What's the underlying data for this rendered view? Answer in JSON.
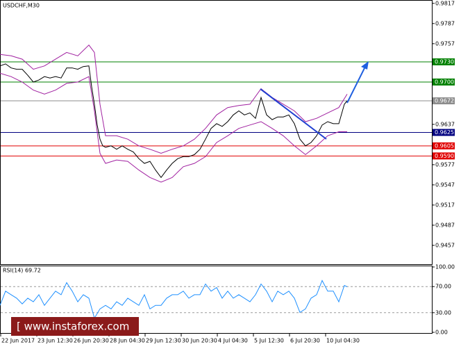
{
  "chart_data": [
    {
      "type": "line",
      "title": "USDCHF,M30",
      "xlim": [
        0,
        155.5
      ],
      "xticks": [
        {
          "value": 0,
          "label": "22 Jun 2017"
        },
        {
          "value": 13,
          "label": "23 Jun 12:30"
        },
        {
          "value": 26,
          "label": "26 Jun 20:30"
        },
        {
          "value": 39,
          "label": "28 Jun 04:30"
        },
        {
          "value": 52,
          "label": "29 Jun 12:30"
        },
        {
          "value": 65,
          "label": "30 Jun 20:30"
        },
        {
          "value": 78,
          "label": "4 Jul 04:30"
        },
        {
          "value": 91,
          "label": "5 Jul 12:30"
        },
        {
          "value": 104,
          "label": "6 Jul 20:30"
        },
        {
          "value": 117,
          "label": "10 Jul 04:30"
        }
      ],
      "ylim": [
        0.9429,
        0.9822
      ],
      "yticks": [
        0.9817,
        0.9787,
        0.9757,
        0.9637,
        0.9577,
        0.9547,
        0.9517,
        0.9487,
        0.9457
      ],
      "levels": [
        {
          "value": 0.973,
          "label": "0.9730",
          "color": "#008000"
        },
        {
          "value": 0.97,
          "label": "0.9700",
          "color": "#008000"
        },
        {
          "value": 0.9672,
          "label": "0.9672",
          "color": "#8c8c8c"
        },
        {
          "value": 0.9625,
          "label": "0.9625",
          "color": "#000080"
        },
        {
          "value": 0.9605,
          "label": "0.9605",
          "color": "#e00000"
        },
        {
          "value": 0.959,
          "label": "0.9590",
          "color": "#e00000"
        }
      ],
      "series": [
        {
          "color": "#000000",
          "x": [
            0,
            2,
            4,
            6,
            8,
            10,
            12,
            14,
            16,
            18,
            20,
            22,
            24,
            26,
            28,
            30,
            32,
            33,
            34,
            35,
            36,
            37,
            38,
            40,
            42,
            44,
            46,
            48,
            50,
            52,
            54,
            56,
            58,
            60,
            62,
            64,
            66,
            68,
            70,
            72,
            74,
            76,
            78,
            80,
            82,
            84,
            86,
            88,
            90,
            92,
            94,
            96,
            98,
            100,
            102,
            104,
            106,
            108,
            110,
            112,
            114,
            116,
            118,
            120,
            122,
            124,
            125
          ],
          "values": [
            0.9724,
            0.9727,
            0.9721,
            0.9719,
            0.9719,
            0.971,
            0.97,
            0.9703,
            0.9708,
            0.9706,
            0.9708,
            0.9706,
            0.9721,
            0.9721,
            0.9719,
            0.9723,
            0.9724,
            0.9693,
            0.9667,
            0.9636,
            0.9615,
            0.9605,
            0.9603,
            0.9605,
            0.96,
            0.9605,
            0.96,
            0.9596,
            0.9586,
            0.9579,
            0.9582,
            0.9569,
            0.9558,
            0.9569,
            0.9579,
            0.9586,
            0.9589,
            0.9589,
            0.9592,
            0.96,
            0.9615,
            0.9631,
            0.9638,
            0.9634,
            0.9641,
            0.9651,
            0.9657,
            0.9651,
            0.9654,
            0.9646,
            0.9677,
            0.9651,
            0.9644,
            0.9648,
            0.9648,
            0.9651,
            0.9638,
            0.9615,
            0.9605,
            0.961,
            0.962,
            0.9636,
            0.9641,
            0.9638,
            0.9638,
            0.9667,
            0.9672
          ]
        },
        {
          "color": "#a020a0",
          "x": [
            0,
            4,
            8,
            12,
            16,
            20,
            24,
            28,
            32,
            34,
            36,
            38,
            42,
            46,
            50,
            54,
            58,
            62,
            66,
            70,
            74,
            78,
            82,
            86,
            90,
            94,
            98,
            102,
            106,
            110,
            114,
            118,
            122,
            125
          ],
          "values": [
            0.9741,
            0.9739,
            0.9734,
            0.9719,
            0.9724,
            0.9734,
            0.9744,
            0.9739,
            0.9755,
            0.9744,
            0.9667,
            0.962,
            0.962,
            0.9615,
            0.9605,
            0.96,
            0.9594,
            0.96,
            0.9605,
            0.9615,
            0.9631,
            0.9651,
            0.9662,
            0.9665,
            0.9667,
            0.969,
            0.9677,
            0.9667,
            0.9657,
            0.9641,
            0.9646,
            0.9654,
            0.9662,
            0.9682
          ]
        },
        {
          "color": "#a020a0",
          "x": [
            0,
            4,
            8,
            12,
            16,
            20,
            24,
            28,
            32,
            34,
            36,
            38,
            42,
            46,
            50,
            54,
            58,
            62,
            66,
            70,
            74,
            78,
            82,
            86,
            90,
            94,
            98,
            102,
            106,
            110,
            114,
            118,
            122,
            125
          ],
          "values": [
            0.9713,
            0.9708,
            0.97,
            0.9688,
            0.9682,
            0.9688,
            0.9698,
            0.97,
            0.9708,
            0.9657,
            0.9594,
            0.9579,
            0.9584,
            0.9582,
            0.9569,
            0.9558,
            0.9551,
            0.9558,
            0.9574,
            0.9579,
            0.9589,
            0.961,
            0.962,
            0.9631,
            0.9636,
            0.9641,
            0.9631,
            0.962,
            0.9605,
            0.9592,
            0.9605,
            0.962,
            0.9626,
            0.9626
          ]
        }
      ]
    },
    {
      "type": "line",
      "title": "RSI(14) 69.72",
      "xlim": [
        0,
        155.5
      ],
      "ylim": [
        0,
        100
      ],
      "yticks": [
        {
          "value": 100,
          "label": "100.00"
        },
        {
          "value": 70,
          "label": "70.00"
        },
        {
          "value": 30,
          "label": "30.00"
        },
        {
          "value": 0,
          "label": "0.00"
        }
      ],
      "levels": [
        70,
        30
      ],
      "series": [
        {
          "color": "#1e90ff",
          "x": [
            0,
            2,
            4,
            6,
            8,
            10,
            12,
            14,
            16,
            18,
            20,
            22,
            24,
            26,
            28,
            30,
            32,
            34,
            36,
            38,
            40,
            42,
            44,
            46,
            48,
            50,
            52,
            54,
            56,
            58,
            60,
            62,
            64,
            66,
            68,
            70,
            72,
            74,
            76,
            78,
            80,
            82,
            84,
            86,
            88,
            90,
            92,
            94,
            96,
            98,
            100,
            102,
            104,
            106,
            108,
            110,
            112,
            114,
            116,
            118,
            120,
            122,
            124,
            125
          ],
          "values": [
            41.3,
            63.0,
            57.6,
            52.2,
            43.5,
            52.2,
            46.7,
            57.6,
            41.3,
            52.2,
            63.0,
            57.6,
            76.1,
            63.0,
            46.7,
            57.6,
            52.2,
            21.7,
            35.9,
            41.3,
            35.9,
            46.7,
            41.3,
            52.2,
            46.7,
            41.3,
            57.6,
            35.9,
            41.3,
            41.3,
            52.2,
            57.6,
            57.6,
            63.0,
            52.2,
            57.6,
            57.6,
            73.9,
            63.0,
            68.5,
            52.2,
            63.0,
            52.2,
            57.6,
            52.2,
            46.7,
            57.6,
            73.9,
            63.0,
            46.7,
            63.0,
            57.6,
            63.0,
            52.2,
            30.4,
            35.9,
            52.2,
            57.6,
            79.3,
            63.0,
            63.0,
            46.7,
            71.7,
            69.72
          ]
        }
      ]
    }
  ],
  "watermark": "[  www.instaforex.com"
}
